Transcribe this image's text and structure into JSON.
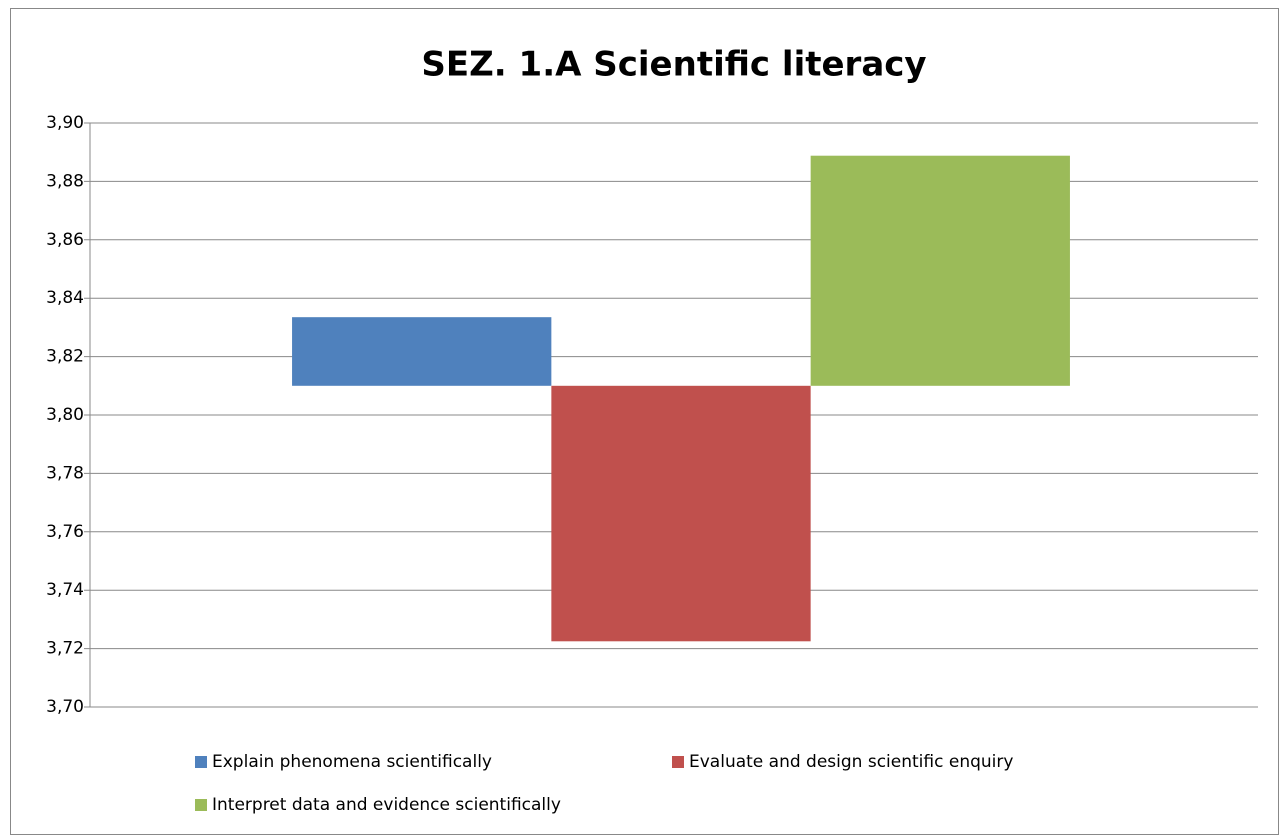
{
  "chart_data": {
    "type": "bar",
    "title": "SEZ. 1.A Scientific literacy",
    "categories": [
      null
    ],
    "base": 3.81,
    "series": [
      {
        "name": "Explain phenomena scientifically",
        "color": "#4f81bd",
        "values": [
          3.8335
        ]
      },
      {
        "name": "Evaluate and design scientific enquiry",
        "color": "#c0504d",
        "values": [
          3.7225
        ]
      },
      {
        "name": "Interpret data and evidence scientifically",
        "color": "#9bbb59",
        "values": [
          3.8888
        ]
      }
    ],
    "ylim": [
      3.7,
      3.9
    ],
    "yticks": [
      {
        "value": 3.7,
        "label": "3,70"
      },
      {
        "value": 3.72,
        "label": "3,72"
      },
      {
        "value": 3.74,
        "label": "3,74"
      },
      {
        "value": 3.76,
        "label": "3,76"
      },
      {
        "value": 3.78,
        "label": "3,78"
      },
      {
        "value": 3.8,
        "label": "3,80"
      },
      {
        "value": 3.82,
        "label": "3,82"
      },
      {
        "value": 3.84,
        "label": "3,84"
      },
      {
        "value": 3.86,
        "label": "3,86"
      },
      {
        "value": 3.88,
        "label": "3,88"
      },
      {
        "value": 3.9,
        "label": "3,90"
      }
    ],
    "grid": true,
    "legend": "bottom"
  }
}
